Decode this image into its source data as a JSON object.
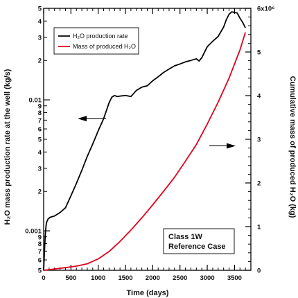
{
  "chart_data": {
    "type": "line",
    "title": "",
    "xlabel": "Time (days)",
    "ylabel_left": "H₂O mass production rate at the well (kg/s)",
    "ylabel_right": "Cumulative mass of produced H₂O (kg)",
    "xlim": [
      0,
      3800
    ],
    "ylim_left": [
      0.0005,
      0.05
    ],
    "yscale_left": "log",
    "ylim_right": [
      0,
      6000000
    ],
    "x_ticks": [
      0,
      500,
      1000,
      1500,
      2000,
      2500,
      3000,
      3500
    ],
    "x_tick_labels": [
      "0",
      "500",
      "1000",
      "1500",
      "2000",
      "2500",
      "3000",
      "3500"
    ],
    "y_left_major_ticks": [
      0.001,
      0.01
    ],
    "y_left_major_labels": [
      "0.001",
      "0.01"
    ],
    "y_left_minor_ticks": [
      0.0005,
      0.0006,
      0.0007,
      0.0008,
      0.0009,
      0.002,
      0.003,
      0.004,
      0.005,
      0.006,
      0.007,
      0.008,
      0.009,
      0.02,
      0.03,
      0.04,
      0.05
    ],
    "y_left_minor_labels": [
      "5",
      "6",
      "7",
      "8",
      "9",
      "2",
      "3",
      "4",
      "5",
      "6",
      "7",
      "8",
      "9",
      "2",
      "3",
      "4",
      "5"
    ],
    "y_right_ticks": [
      0,
      1000000,
      2000000,
      3000000,
      4000000,
      5000000,
      6000000
    ],
    "y_right_tick_labels": [
      "0",
      "1",
      "2",
      "3",
      "4",
      "5",
      "6x10⁶"
    ],
    "legend_placement": "top-left",
    "grid": false,
    "series": [
      {
        "name": "H₂O production rate",
        "axis": "left",
        "color": "#000000",
        "x": [
          0,
          15,
          30,
          50,
          80,
          120,
          200,
          300,
          400,
          500,
          600,
          700,
          800,
          900,
          1000,
          1100,
          1200,
          1250,
          1300,
          1350,
          1400,
          1500,
          1600,
          1700,
          1800,
          1900,
          2000,
          2100,
          2200,
          2300,
          2400,
          2500,
          2600,
          2700,
          2800,
          2850,
          2900,
          3000,
          3100,
          3200,
          3300,
          3350,
          3400,
          3450,
          3500,
          3550,
          3600,
          3650,
          3700
        ],
        "y": [
          0.0005,
          0.0007,
          0.00095,
          0.00115,
          0.00123,
          0.00127,
          0.0013,
          0.00138,
          0.0015,
          0.00185,
          0.0023,
          0.0029,
          0.0037,
          0.0046,
          0.0058,
          0.0072,
          0.0095,
          0.0105,
          0.0108,
          0.0106,
          0.0107,
          0.0108,
          0.0106,
          0.0118,
          0.0125,
          0.0128,
          0.014,
          0.015,
          0.0162,
          0.0172,
          0.0182,
          0.0188,
          0.0195,
          0.02,
          0.0206,
          0.0198,
          0.021,
          0.0255,
          0.028,
          0.0305,
          0.036,
          0.041,
          0.045,
          0.047,
          0.0465,
          0.046,
          0.042,
          0.039,
          0.0355
        ]
      },
      {
        "name": "Mass of produced H₂O",
        "axis": "right",
        "color": "#e0001b",
        "x": [
          0,
          200,
          400,
          600,
          800,
          1000,
          1200,
          1400,
          1600,
          1800,
          2000,
          2200,
          2400,
          2600,
          2800,
          3000,
          3200,
          3400,
          3600,
          3700
        ],
        "y": [
          0,
          30000,
          60000,
          95000,
          150000,
          260000,
          430000,
          660000,
          920000,
          1200000,
          1500000,
          1810000,
          2130000,
          2500000,
          2880000,
          3350000,
          3850000,
          4400000,
          5050000,
          5450000
        ]
      }
    ],
    "annotations": [
      {
        "text_line1": "Class 1W",
        "text_line2": "Reference Case"
      }
    ]
  }
}
